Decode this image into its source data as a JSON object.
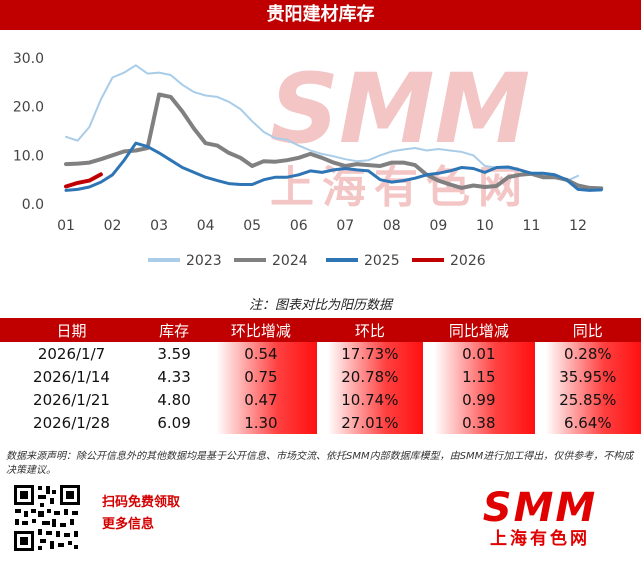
{
  "title": "贵阳建材库存",
  "note": "注：图表对比为阳历数据",
  "colors": {
    "accent": "#c00000",
    "s2023": "#a9cde8",
    "s2024": "#808080",
    "s2025": "#2e75b6",
    "s2026": "#c00000",
    "watermark": "#f3c5c5"
  },
  "watermark": {
    "big": "SMM",
    "small": "上海有色网"
  },
  "chart_data": {
    "type": "line",
    "title": "贵阳建材库存",
    "xlabel": "",
    "ylabel": "",
    "ylim": [
      0,
      30
    ],
    "yticks": [
      "0.0",
      "10.0",
      "20.0",
      "30.0"
    ],
    "xticks": [
      "01",
      "02",
      "03",
      "04",
      "05",
      "06",
      "07",
      "08",
      "09",
      "10",
      "11",
      "12"
    ],
    "grid": false,
    "legend": "bottom",
    "series": [
      {
        "name": "2023",
        "x": [
          1,
          1.25,
          1.5,
          1.75,
          2,
          2.25,
          2.5,
          2.75,
          3,
          3.25,
          3.5,
          3.75,
          4,
          4.25,
          4.5,
          4.75,
          5,
          5.25,
          5.5,
          5.75,
          6,
          6.25,
          6.5,
          6.75,
          7,
          7.25,
          7.5,
          7.75,
          8,
          8.25,
          8.5,
          8.75,
          9,
          9.25,
          9.5,
          9.75,
          10,
          10.25,
          10.5,
          10.75,
          11,
          11.25,
          11.5,
          11.75,
          12
        ],
        "values": [
          13.8,
          13.0,
          15.8,
          21.5,
          26.0,
          27.0,
          28.5,
          26.8,
          27.0,
          26.5,
          24.5,
          23.0,
          22.3,
          22.0,
          21.0,
          19.5,
          17.0,
          14.8,
          13.5,
          13.2,
          12.0,
          11.0,
          10.3,
          9.8,
          9.2,
          8.8,
          9.0,
          10.0,
          10.8,
          11.2,
          11.5,
          11.0,
          11.3,
          11.0,
          10.7,
          10.0,
          7.8,
          7.5,
          7.3,
          7.0,
          6.3,
          6.0,
          5.5,
          4.7,
          5.8
        ]
      },
      {
        "name": "2024",
        "x": [
          1,
          1.25,
          1.5,
          1.75,
          2,
          2.25,
          2.5,
          2.75,
          3,
          3.25,
          3.5,
          3.75,
          4,
          4.25,
          4.5,
          4.75,
          5,
          5.25,
          5.5,
          5.75,
          6,
          6.25,
          6.5,
          6.75,
          7,
          7.25,
          7.5,
          7.75,
          8,
          8.25,
          8.5,
          8.75,
          9,
          9.25,
          9.5,
          9.75,
          10,
          10.25,
          10.5,
          10.75,
          11,
          11.25,
          11.5,
          11.75,
          12,
          12.25,
          12.5
        ],
        "values": [
          8.2,
          8.3,
          8.5,
          9.2,
          10.0,
          10.8,
          11.0,
          11.5,
          22.5,
          22.0,
          19.0,
          15.5,
          12.5,
          12.0,
          10.5,
          9.5,
          7.8,
          8.8,
          8.7,
          9.0,
          9.5,
          10.3,
          9.5,
          8.5,
          7.8,
          8.2,
          8.0,
          7.8,
          8.5,
          8.5,
          8.0,
          6.0,
          4.8,
          4.0,
          3.3,
          3.8,
          3.5,
          3.7,
          5.5,
          6.0,
          6.2,
          5.5,
          5.5,
          5.0,
          3.8,
          3.3,
          3.2
        ]
      },
      {
        "name": "2025",
        "x": [
          1,
          1.25,
          1.5,
          1.75,
          2,
          2.25,
          2.5,
          2.75,
          3,
          3.25,
          3.5,
          3.75,
          4,
          4.25,
          4.5,
          4.75,
          5,
          5.25,
          5.5,
          5.75,
          6,
          6.25,
          6.5,
          6.75,
          7,
          7.25,
          7.5,
          7.75,
          8,
          8.25,
          8.5,
          8.75,
          9,
          9.25,
          9.5,
          9.75,
          10,
          10.25,
          10.5,
          10.75,
          11,
          11.25,
          11.5,
          11.75,
          12,
          12.25,
          12.5
        ],
        "values": [
          2.8,
          3.0,
          3.5,
          4.5,
          6.0,
          9.0,
          12.5,
          11.8,
          10.5,
          9.0,
          7.5,
          6.5,
          5.5,
          4.8,
          4.2,
          4.0,
          4.0,
          5.0,
          5.5,
          5.5,
          6.0,
          6.8,
          6.5,
          7.0,
          7.3,
          7.0,
          6.8,
          5.0,
          4.5,
          4.8,
          5.3,
          6.0,
          6.3,
          6.8,
          7.5,
          7.3,
          6.5,
          7.5,
          7.6,
          7.0,
          6.3,
          6.3,
          6.0,
          5.0,
          3.0,
          2.8,
          2.9
        ]
      },
      {
        "name": "2026",
        "x": [
          1.0,
          1.25,
          1.5,
          1.75
        ],
        "values": [
          3.59,
          4.33,
          4.8,
          6.09
        ]
      }
    ]
  },
  "table": {
    "headers": [
      "日期",
      "库存",
      "环比增减",
      "环比",
      "同比增减",
      "同比"
    ],
    "rows": [
      [
        "2026/1/7",
        "3.59",
        "0.54",
        "17.73%",
        "0.01",
        "0.28%"
      ],
      [
        "2026/1/14",
        "4.33",
        "0.75",
        "20.78%",
        "1.15",
        "35.95%"
      ],
      [
        "2026/1/21",
        "4.80",
        "0.47",
        "10.74%",
        "0.99",
        "25.85%"
      ],
      [
        "2026/1/28",
        "6.09",
        "1.30",
        "27.01%",
        "0.38",
        "6.64%"
      ]
    ]
  },
  "disclaimer": "数据来源声明：除公开信息外的其他数据均是基于公开信息、市场交流、依托SMM内部数据库模型，由SMM进行加工得出，仅供参考，不构成决策建议。",
  "promo": {
    "line1": "扫码免费领取",
    "line2": "更多信息"
  },
  "logo": {
    "big": "SMM",
    "small": "上海有色网"
  }
}
